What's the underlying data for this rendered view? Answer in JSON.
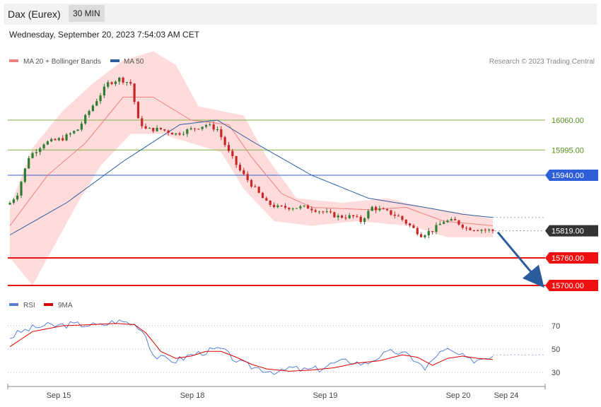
{
  "header": {
    "symbol": "Dax (Eurex)",
    "interval": "30 MIN"
  },
  "timestamp": "Wednesday, September 20, 2023 7:54:03 AM CET",
  "legend_main": [
    {
      "label": "MA 20 + Bollinger Bands",
      "color": "#f08080"
    },
    {
      "label": "MA 50",
      "color": "#2e5e9e"
    }
  ],
  "legend_rsi": [
    {
      "label": "RSI",
      "color": "#5b7fd6"
    },
    {
      "label": "9MA",
      "color": "#dd0000"
    }
  ],
  "copyright": "Research © 2023 Trading Central",
  "colors": {
    "resistance": "#7cb342",
    "pivot": "#2f5fd8",
    "support": "#ee1111",
    "last": "#333333",
    "arrow": "#2a5b9c",
    "up": "#2e7d32",
    "down": "#c62828",
    "band": "#ffd6d6"
  },
  "chart_data": {
    "type": "candlestick",
    "x_ticks": [
      "Sep 15",
      "Sep 18",
      "Sep 19",
      "Sep 20",
      "Sep 24"
    ],
    "ylim": [
      15690,
      16210
    ],
    "levels": [
      {
        "value": 16060,
        "label": "16060.00",
        "kind": "resistance"
      },
      {
        "value": 15995,
        "label": "15995.00",
        "kind": "resistance"
      },
      {
        "value": 15940,
        "label": "15940.00",
        "kind": "pivot"
      },
      {
        "value": 15819,
        "label": "15819.00",
        "kind": "last"
      },
      {
        "value": 15760,
        "label": "15760.00",
        "kind": "support"
      },
      {
        "value": 15700,
        "label": "15700.00",
        "kind": "support"
      }
    ],
    "last_price": 15819,
    "forecast_target": 15700,
    "close_anchors": [
      [
        0,
        15880
      ],
      [
        2,
        15900
      ],
      [
        5,
        15980
      ],
      [
        9,
        16010
      ],
      [
        14,
        16020
      ],
      [
        18,
        16040
      ],
      [
        21,
        16080
      ],
      [
        26,
        16140
      ],
      [
        29,
        16150
      ],
      [
        32,
        16140
      ],
      [
        34,
        16060
      ],
      [
        36,
        16040
      ],
      [
        40,
        16040
      ],
      [
        44,
        16030
      ],
      [
        48,
        16040
      ],
      [
        52,
        16050
      ],
      [
        55,
        16040
      ],
      [
        58,
        15990
      ],
      [
        61,
        15950
      ],
      [
        64,
        15920
      ],
      [
        68,
        15880
      ],
      [
        71,
        15870
      ],
      [
        75,
        15870
      ],
      [
        79,
        15870
      ],
      [
        83,
        15860
      ],
      [
        87,
        15850
      ],
      [
        91,
        15850
      ],
      [
        93,
        15840
      ],
      [
        96,
        15870
      ],
      [
        100,
        15860
      ],
      [
        103,
        15850
      ],
      [
        106,
        15830
      ],
      [
        109,
        15810
      ],
      [
        112,
        15820
      ],
      [
        115,
        15840
      ],
      [
        118,
        15840
      ],
      [
        121,
        15825
      ],
      [
        125,
        15822
      ],
      [
        128,
        15819
      ]
    ],
    "ma50": [
      [
        0,
        15810
      ],
      [
        15,
        15880
      ],
      [
        30,
        15970
      ],
      [
        45,
        16050
      ],
      [
        55,
        16060
      ],
      [
        65,
        16010
      ],
      [
        80,
        15940
      ],
      [
        95,
        15890
      ],
      [
        110,
        15870
      ],
      [
        120,
        15855
      ],
      [
        128,
        15848
      ]
    ],
    "ma20": [
      [
        0,
        15830
      ],
      [
        10,
        15940
      ],
      [
        20,
        16010
      ],
      [
        30,
        16110
      ],
      [
        38,
        16110
      ],
      [
        48,
        16060
      ],
      [
        58,
        16050
      ],
      [
        64,
        15980
      ],
      [
        72,
        15900
      ],
      [
        80,
        15870
      ],
      [
        95,
        15865
      ],
      [
        105,
        15870
      ],
      [
        115,
        15840
      ],
      [
        128,
        15830
      ]
    ],
    "boll_upper": [
      [
        0,
        15870
      ],
      [
        6,
        16000
      ],
      [
        14,
        16080
      ],
      [
        22,
        16140
      ],
      [
        30,
        16190
      ],
      [
        38,
        16210
      ],
      [
        44,
        16180
      ],
      [
        50,
        16090
      ],
      [
        56,
        16080
      ],
      [
        62,
        16070
      ],
      [
        68,
        15980
      ],
      [
        76,
        15890
      ],
      [
        88,
        15880
      ],
      [
        100,
        15890
      ],
      [
        110,
        15870
      ],
      [
        118,
        15860
      ],
      [
        128,
        15845
      ]
    ],
    "boll_lower": [
      [
        0,
        15760
      ],
      [
        6,
        15700
      ],
      [
        12,
        15790
      ],
      [
        18,
        15880
      ],
      [
        24,
        15960
      ],
      [
        32,
        16030
      ],
      [
        40,
        16030
      ],
      [
        48,
        16010
      ],
      [
        56,
        15990
      ],
      [
        62,
        15910
      ],
      [
        70,
        15840
      ],
      [
        80,
        15830
      ],
      [
        92,
        15840
      ],
      [
        106,
        15830
      ],
      [
        116,
        15805
      ],
      [
        128,
        15805
      ]
    ],
    "rsi": {
      "levels": [
        70,
        50,
        30
      ],
      "ylim": [
        20,
        80
      ],
      "rsi": [
        [
          0,
          60
        ],
        [
          3,
          65
        ],
        [
          6,
          68
        ],
        [
          9,
          70
        ],
        [
          12,
          70
        ],
        [
          16,
          71
        ],
        [
          20,
          71
        ],
        [
          24,
          70
        ],
        [
          28,
          74
        ],
        [
          31,
          73
        ],
        [
          34,
          70
        ],
        [
          36,
          62
        ],
        [
          38,
          45
        ],
        [
          40,
          42
        ],
        [
          44,
          40
        ],
        [
          48,
          45
        ],
        [
          52,
          48
        ],
        [
          56,
          50
        ],
        [
          58,
          45
        ],
        [
          61,
          38
        ],
        [
          64,
          35
        ],
        [
          68,
          32
        ],
        [
          72,
          30
        ],
        [
          74,
          34
        ],
        [
          78,
          32
        ],
        [
          82,
          33
        ],
        [
          86,
          38
        ],
        [
          90,
          40
        ],
        [
          94,
          37
        ],
        [
          98,
          44
        ],
        [
          102,
          48
        ],
        [
          105,
          45
        ],
        [
          108,
          40
        ],
        [
          110,
          32
        ],
        [
          113,
          45
        ],
        [
          116,
          49
        ],
        [
          119,
          45
        ],
        [
          122,
          40
        ],
        [
          125,
          42
        ],
        [
          128,
          45
        ]
      ],
      "ma9": [
        [
          0,
          52
        ],
        [
          6,
          65
        ],
        [
          14,
          70
        ],
        [
          22,
          71
        ],
        [
          28,
          72
        ],
        [
          33,
          71
        ],
        [
          36,
          64
        ],
        [
          40,
          48
        ],
        [
          44,
          42
        ],
        [
          48,
          44
        ],
        [
          52,
          48
        ],
        [
          56,
          48
        ],
        [
          60,
          43
        ],
        [
          64,
          37
        ],
        [
          68,
          33
        ],
        [
          74,
          31
        ],
        [
          80,
          32
        ],
        [
          86,
          34
        ],
        [
          92,
          38
        ],
        [
          98,
          40
        ],
        [
          104,
          45
        ],
        [
          108,
          43
        ],
        [
          112,
          36
        ],
        [
          116,
          42
        ],
        [
          120,
          44
        ],
        [
          124,
          42
        ],
        [
          128,
          41
        ]
      ]
    }
  }
}
